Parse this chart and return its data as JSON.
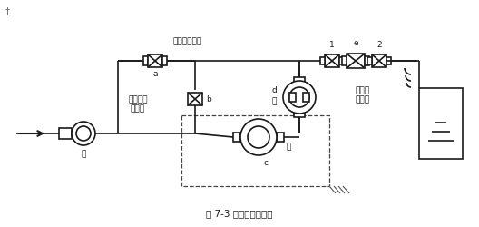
{
  "title": "图 7-3 传感器安装位置",
  "bg_color": "#ffffff",
  "line_color": "#1a1a1a",
  "figsize": [
    5.28,
    2.51
  ],
  "dpi": 100,
  "labels": {
    "top_label": "容易积聚空气",
    "a": "a",
    "b": "b",
    "c": "c",
    "d": "d",
    "e": "e",
    "n1": "1",
    "n2": "2",
    "liquid_left": "液体可能\n不充满",
    "liquid_right": "液体没\n有充满",
    "good_left": "好",
    "good_bottom": "好",
    "pump": "泵"
  }
}
